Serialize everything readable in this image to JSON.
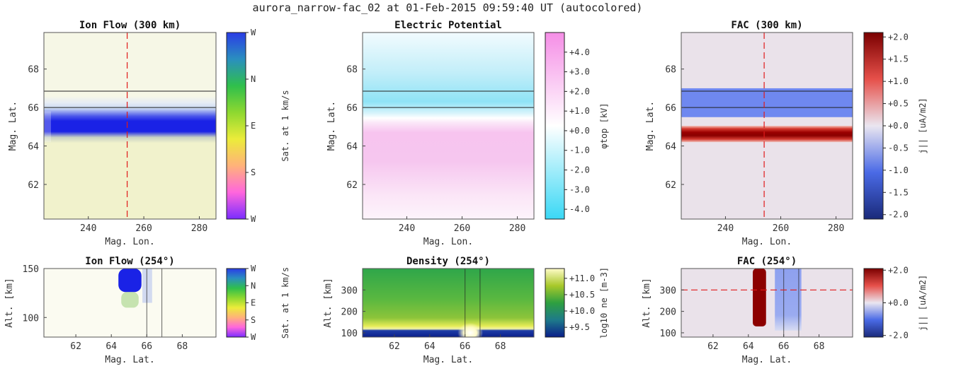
{
  "figure": {
    "title": "aurora_narrow-fac_02 at 01-Feb-2015 09:59:40 UT (autocolored)"
  },
  "chart_data": [
    {
      "id": "ion_flow_map",
      "type": "heatmap",
      "title": "Ion Flow (300 km)",
      "xlabel": "Mag. Lon.",
      "ylabel": "Mag. Lat.",
      "xlim": [
        224,
        286
      ],
      "ylim": [
        60.2,
        69.9
      ],
      "xticks": [
        "240",
        "260",
        "280"
      ],
      "xtick_values": [
        240,
        260,
        280
      ],
      "yticks": [
        "62",
        "64",
        "66",
        "68"
      ],
      "ytick_values": [
        62,
        64,
        66,
        68
      ],
      "colorbar_label": "Sat. at 1 km/s",
      "colorbar_ticks": [
        "W",
        "N",
        "E",
        "S",
        "W"
      ],
      "colorbar_colors": [
        "#7a2cff",
        "#ff66dd",
        "#ffb27a",
        "#ecec3a",
        "#8ed830",
        "#2fbf4c",
        "#2a8fbf",
        "#2a3ce6"
      ],
      "features": [
        {
          "label": "westward flow band",
          "lat_center": 65.0,
          "lat_halfwidth": 0.45,
          "color": "#1a22e6"
        },
        {
          "label": "northward flow region",
          "lat_from": 65.5,
          "lat_to": 66.2,
          "color": "#c9d9f2"
        },
        {
          "label": "eastward flow background south",
          "lat_from": 60.2,
          "lat_to": 64.4,
          "color": "#f1f2cc"
        },
        {
          "label": "background north",
          "lat_from": 66.5,
          "lat_to": 69.9,
          "color": "#f6f7e6"
        }
      ],
      "hlines": [
        66.0,
        66.85
      ],
      "vline_dashed": 254
    },
    {
      "id": "electric_potential_map",
      "type": "heatmap",
      "title": "Electric Potential",
      "xlabel": "Mag. Lon.",
      "ylabel": "Mag. Lat.",
      "xlim": [
        224,
        286
      ],
      "ylim": [
        60.2,
        69.9
      ],
      "xticks": [
        "240",
        "260",
        "280"
      ],
      "xtick_values": [
        240,
        260,
        280
      ],
      "yticks": [
        "62",
        "64",
        "66",
        "68"
      ],
      "ytick_values": [
        62,
        64,
        66,
        68
      ],
      "colorbar_label": "φtop [kV]",
      "colorbar_ticks": [
        "+4.0",
        "+3.0",
        "+2.0",
        "+1.0",
        "+0.0",
        "-1.0",
        "-2.0",
        "-3.0",
        "-4.0"
      ],
      "colorbar_tick_values": [
        4,
        3,
        2,
        1,
        0,
        -1,
        -2,
        -3,
        -4
      ],
      "colorbar_range": [
        -4.5,
        5.0
      ],
      "colorbar_colors": [
        "#3ad8f5",
        "#ffffff",
        "#f58ee6"
      ],
      "features": [
        {
          "label": "negative potential (north)",
          "lat_from": 65.5,
          "lat_to": 69.9,
          "value": -1.5
        },
        {
          "label": "positive potential (south)",
          "lat_from": 60.2,
          "lat_to": 65.3,
          "value": 2.5
        }
      ],
      "hlines": [
        66.0,
        66.85
      ]
    },
    {
      "id": "fac_map",
      "type": "heatmap",
      "title": "FAC (300 km)",
      "xlabel": "Mag. Lon.",
      "ylabel": "Mag. Lat.",
      "xlim": [
        224,
        286
      ],
      "ylim": [
        60.2,
        69.9
      ],
      "xticks": [
        "240",
        "260",
        "280"
      ],
      "xtick_values": [
        240,
        260,
        280
      ],
      "yticks": [
        "62",
        "64",
        "66",
        "68"
      ],
      "ytick_values": [
        62,
        64,
        66,
        68
      ],
      "colorbar_label": "j|| [uA/m2]",
      "colorbar_ticks": [
        "+2.0",
        "+1.5",
        "+1.0",
        "+0.5",
        "+0.0",
        "-0.5",
        "-1.0",
        "-1.5",
        "-2.0"
      ],
      "colorbar_tick_values": [
        2.0,
        1.5,
        1.0,
        0.5,
        0.0,
        -0.5,
        -1.0,
        -1.5,
        -2.0
      ],
      "colorbar_range": [
        -2.1,
        2.1
      ],
      "colorbar_colors": [
        "#1a2a7a",
        "#4a6ae6",
        "#eae6f0",
        "#e6504a",
        "#7a0000"
      ],
      "features": [
        {
          "label": "upward current band",
          "lat_from": 64.25,
          "lat_to": 65.0,
          "value": 2.0
        },
        {
          "label": "downward current band",
          "lat_from": 65.5,
          "lat_to": 67.0,
          "value": -0.9
        }
      ],
      "hlines": [
        66.0,
        66.85
      ],
      "vline_dashed": 254
    },
    {
      "id": "ion_flow_profile",
      "type": "heatmap",
      "title": "Ion Flow (254°)",
      "xlabel": "Mag. Lat.",
      "ylabel": "Alt. [km]",
      "xlim": [
        60.2,
        69.9
      ],
      "ylim": [
        80,
        150
      ],
      "xticks": [
        "62",
        "64",
        "66",
        "68"
      ],
      "xtick_values": [
        62,
        64,
        66,
        68
      ],
      "yticks": [
        "100",
        "150"
      ],
      "ytick_values": [
        100,
        150
      ],
      "colorbar_label": "Sat. at 1 km/s",
      "colorbar_ticks": [
        "W",
        "N",
        "E",
        "S",
        "W"
      ],
      "colorbar_colors": [
        "#7a2cff",
        "#ff66dd",
        "#ffb27a",
        "#ecec3a",
        "#8ed830",
        "#2fbf4c",
        "#2a8fbf",
        "#2a3ce6"
      ],
      "features": [
        {
          "label": "westward flow column",
          "lat_from": 64.4,
          "lat_to": 65.7,
          "alt_from": 126,
          "alt_to": 150,
          "color": "#1a22e6"
        },
        {
          "label": "green transition",
          "lat_from": 64.5,
          "lat_to": 65.5,
          "alt_from": 110,
          "alt_to": 126,
          "color": "#9ad07a"
        }
      ],
      "vlines": [
        66.0,
        66.85
      ]
    },
    {
      "id": "density_profile",
      "type": "heatmap",
      "title": "Density (254°)",
      "xlabel": "Mag. Lat.",
      "ylabel": "Alt. [km]",
      "xlim": [
        60.2,
        69.9
      ],
      "ylim": [
        80,
        400
      ],
      "xticks": [
        "62",
        "64",
        "66",
        "68"
      ],
      "xtick_values": [
        62,
        64,
        66,
        68
      ],
      "yticks": [
        "100",
        "200",
        "300"
      ],
      "ytick_values": [
        100,
        200,
        300
      ],
      "colorbar_label": "log10 ne [m-3]",
      "colorbar_ticks": [
        "+11.0",
        "+10.5",
        "+10.0",
        "+9.5"
      ],
      "colorbar_tick_values": [
        11.0,
        10.5,
        10.0,
        9.5
      ],
      "colorbar_range": [
        9.2,
        11.3
      ],
      "colorbar_colors": [
        "#0a1e8a",
        "#1e7a8a",
        "#2ea040",
        "#a8c82a",
        "#fffbc8"
      ],
      "features": [
        {
          "label": "enhanced density at low altitude",
          "lat_from": 65.7,
          "lat_to": 66.8,
          "alt_from": 90,
          "alt_to": 140,
          "value": 11.2
        }
      ],
      "vlines": [
        66.0,
        66.85
      ]
    },
    {
      "id": "fac_profile",
      "type": "heatmap",
      "title": "FAC (254°)",
      "xlabel": "Mag. Lat.",
      "ylabel": "Alt. [km]",
      "xlim": [
        60.2,
        69.9
      ],
      "ylim": [
        80,
        400
      ],
      "xticks": [
        "62",
        "64",
        "66",
        "68"
      ],
      "xtick_values": [
        62,
        64,
        66,
        68
      ],
      "yticks": [
        "100",
        "200",
        "300"
      ],
      "ytick_values": [
        100,
        200,
        300
      ],
      "colorbar_label": "j|| [uA/m2]",
      "colorbar_ticks": [
        "+2.0",
        "+0.0",
        "-2.0"
      ],
      "colorbar_tick_values": [
        2.0,
        0.0,
        -2.0
      ],
      "colorbar_range": [
        -2.1,
        2.1
      ],
      "colorbar_colors": [
        "#1a2a7a",
        "#4a6ae6",
        "#eae6f0",
        "#e6504a",
        "#7a0000"
      ],
      "features": [
        {
          "label": "upward current column",
          "lat_from": 64.25,
          "lat_to": 65.0,
          "alt_from": 130,
          "alt_to": 400,
          "value": 2.0
        },
        {
          "label": "downward current column",
          "lat_from": 65.5,
          "lat_to": 67.0,
          "alt_from": 110,
          "alt_to": 400,
          "value": -0.9
        }
      ],
      "vlines": [
        66.0,
        66.85
      ],
      "hline_dashed": 300
    }
  ]
}
